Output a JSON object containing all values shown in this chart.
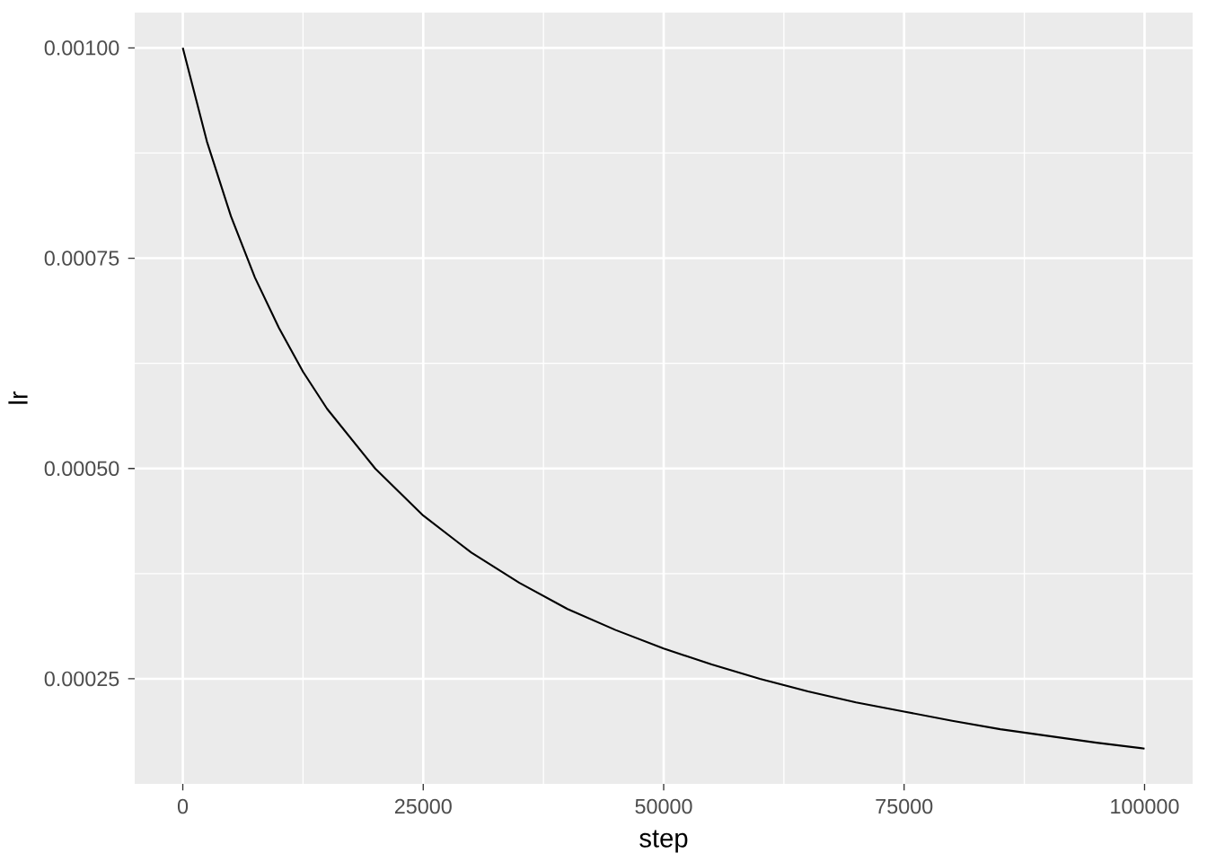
{
  "chart_data": {
    "type": "line",
    "xlabel": "step",
    "ylabel": "lr",
    "x": [
      0,
      2500,
      5000,
      7500,
      10000,
      12500,
      15000,
      20000,
      25000,
      30000,
      35000,
      40000,
      45000,
      50000,
      55000,
      60000,
      65000,
      70000,
      75000,
      80000,
      85000,
      90000,
      95000,
      100000
    ],
    "values": [
      0.001,
      0.000889,
      0.0008,
      0.000727,
      0.000667,
      0.000615,
      0.000571,
      0.0005,
      0.000444,
      0.0004,
      0.000364,
      0.000333,
      0.000308,
      0.000286,
      0.000267,
      0.00025,
      0.000235,
      0.000222,
      0.000211,
      0.0002,
      0.00019,
      0.000182,
      0.000174,
      0.000167
    ],
    "color": "#000000",
    "xlim": [
      -5000,
      105000
    ],
    "ylim": [
      0.000125,
      0.001042
    ],
    "xticks": [
      0,
      25000,
      50000,
      75000,
      100000
    ],
    "yticks": [
      {
        "value": 0.00025,
        "label": "0.00025"
      },
      {
        "value": 0.0005,
        "label": "0.00050"
      },
      {
        "value": 0.00075,
        "label": "0.00075"
      },
      {
        "value": 0.001,
        "label": "0.00100"
      }
    ],
    "grid": true
  }
}
